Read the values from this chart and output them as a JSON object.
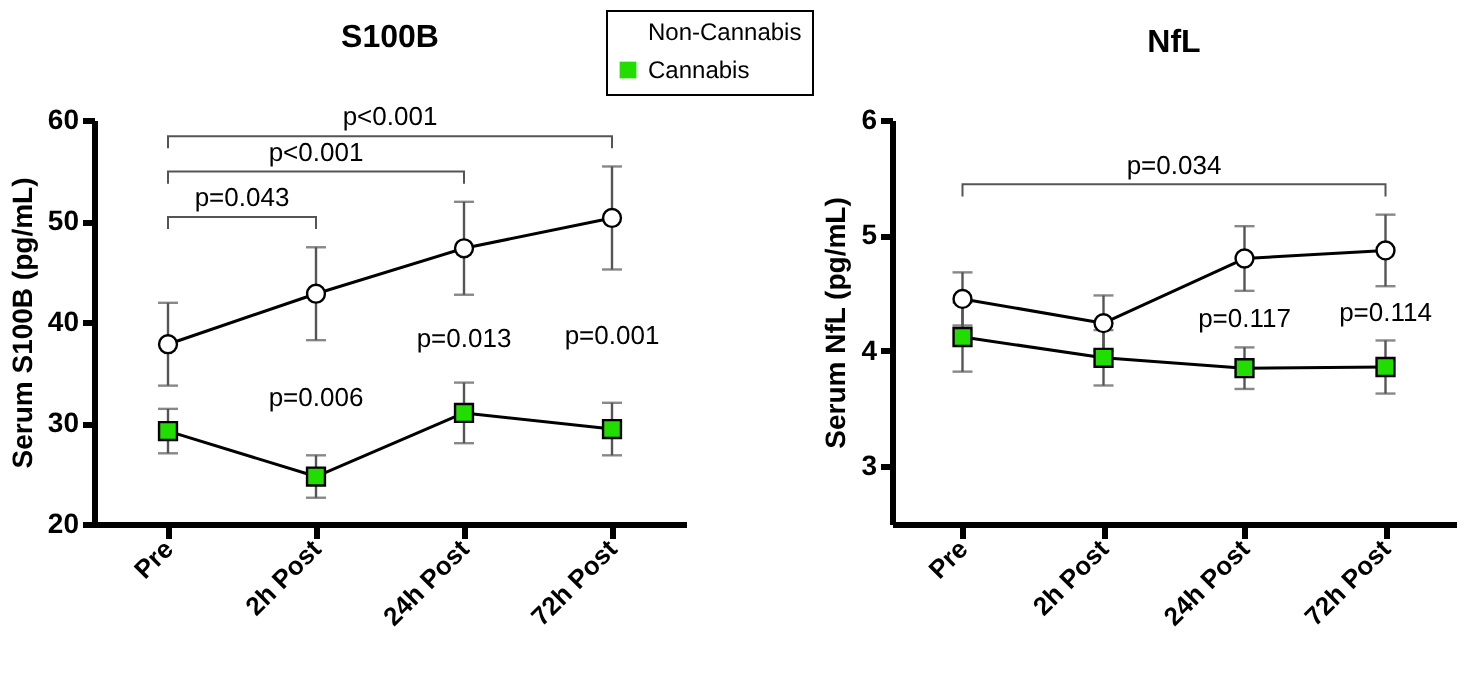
{
  "chart_data": [
    {
      "type": "line",
      "title": "S100B",
      "ylabel": "Serum S100B (pg/mL)",
      "categories": [
        "Pre",
        "2h Post",
        "24h Post",
        "72h Post"
      ],
      "ylim": [
        20,
        60
      ],
      "yticks": [
        20,
        30,
        40,
        50,
        60
      ],
      "legend": "top right",
      "series": [
        {
          "name": "Non-Cannabis",
          "color": "#ffffff",
          "marker": "circle",
          "values": [
            37.8,
            42.8,
            47.3,
            50.3
          ],
          "errors": [
            4.1,
            4.6,
            4.6,
            5.1
          ]
        },
        {
          "name": "Cannabis",
          "color": "#22dd00",
          "marker": "square",
          "values": [
            29.2,
            24.7,
            31,
            29.4
          ],
          "errors": [
            2.2,
            2.1,
            3,
            2.6
          ]
        }
      ],
      "annotations": [
        "p=0.043",
        "p<0.001",
        "p<0.001",
        "p=0.006",
        "p=0.013",
        "p=0.001"
      ]
    },
    {
      "type": "line",
      "title": "NfL",
      "ylabel": "Serum NfL (pg/mL)",
      "categories": [
        "Pre",
        "2h Post",
        "24h Post",
        "72h Post"
      ],
      "ylim": [
        2.5,
        6
      ],
      "yticks": [
        3,
        4,
        5,
        6
      ],
      "series": [
        {
          "color": "#ffffff",
          "marker": "circle",
          "values": [
            4.45,
            4.24,
            4.8,
            4.87
          ],
          "errors": [
            0.23,
            0.24,
            0.28,
            0.31
          ]
        },
        {
          "color": "#22dd00",
          "marker": "square",
          "values": [
            4.12,
            3.94,
            3.85,
            3.86
          ],
          "errors": [
            0.3,
            0.24,
            0.18,
            0.23
          ]
        }
      ],
      "annotations": [
        "p=0.034",
        "p=0.117",
        "p=0.114"
      ]
    }
  ]
}
